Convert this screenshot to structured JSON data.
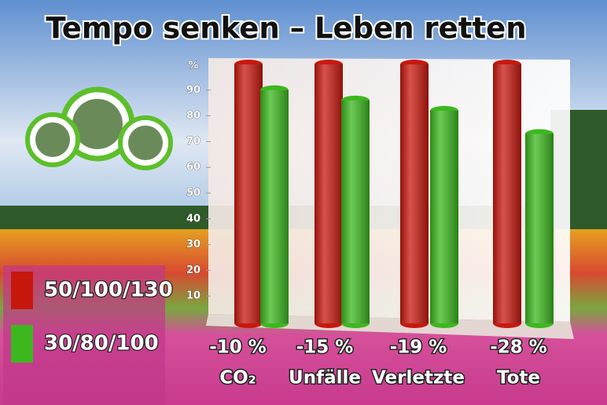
{
  "chart_data": {
    "type": "bar",
    "title": "Tempo senken – Leben retten",
    "y_label": "%",
    "categories": [
      "CO₂",
      "Unfälle",
      "Verletzte",
      "Tote"
    ],
    "category_notes": [
      "-10 %",
      "-15 %",
      "-19 %",
      "-28 %"
    ],
    "series": [
      {
        "name": "50/100/130",
        "color": "#c8180e",
        "values": [
          100,
          100,
          100,
          100
        ]
      },
      {
        "name": "30/80/100",
        "color": "#3cb81e",
        "values": [
          90,
          86,
          82,
          73
        ]
      }
    ],
    "ylim": [
      0,
      100
    ],
    "yticks": [
      10,
      20,
      30,
      40,
      50,
      60,
      70,
      80,
      90
    ]
  }
}
